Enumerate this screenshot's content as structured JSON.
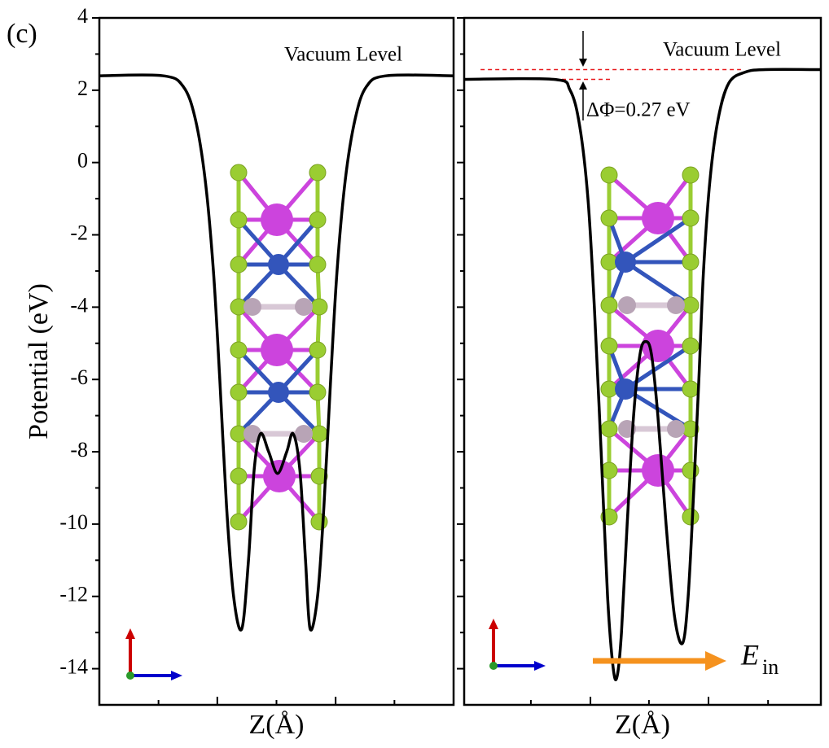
{
  "panel_label": "(c)",
  "chart_data": [
    {
      "type": "line",
      "ylabel": "Potential (eV)",
      "xlabel": "Z(Å)",
      "color": "#000000",
      "xlim": [
        0,
        100
      ],
      "xticks": [
        16.7,
        33.3,
        50,
        66.7,
        83.3
      ],
      "ylim": [
        -15,
        4
      ],
      "yticks": [
        4,
        2,
        0,
        -2,
        -4,
        -6,
        -8,
        -10,
        -12,
        -14
      ],
      "x": [
        0,
        17.9,
        23.7,
        27.1,
        29.9,
        32.2,
        34.0,
        35.9,
        37.9,
        40.2,
        42.1,
        43.7,
        45.5,
        47.8,
        50.3,
        52.9,
        54.7,
        56.6,
        58.2,
        59.5,
        61.6,
        63.4,
        65.3,
        67.1,
        69.4,
        72.2,
        75.4,
        81.1,
        100
      ],
      "values": [
        2.4,
        2.4,
        2.1,
        1.2,
        -0.5,
        -3,
        -6,
        -9.5,
        -12,
        -12.9,
        -11,
        -8.5,
        -7.5,
        -8,
        -8.6,
        -8,
        -7.5,
        -8.5,
        -11,
        -12.9,
        -12,
        -9.5,
        -6,
        -3,
        -0.5,
        1.2,
        2.1,
        2.4,
        2.4
      ],
      "annotations": [
        "Vacuum Level"
      ]
    },
    {
      "type": "line",
      "xlabel": "Z(Å)",
      "color": "#000000",
      "xlim": [
        0,
        100
      ],
      "xticks": [
        18.7,
        35.4,
        51.8,
        68.5,
        85.2
      ],
      "ylim": [
        -15,
        4
      ],
      "yticks": [
        4,
        2,
        0,
        -2,
        -4,
        -6,
        -8,
        -10,
        -12,
        -14
      ],
      "x": [
        0,
        25.1,
        29.7,
        32.4,
        34.7,
        36.5,
        38.4,
        40.2,
        41.8,
        42.9,
        44.1,
        45.7,
        47.5,
        49.3,
        50.9,
        52.5,
        54.3,
        56.6,
        58.9,
        61.2,
        62.8,
        64.4,
        65.8,
        67.1,
        68.9,
        71.2,
        74.2,
        78.8,
        84.5,
        100
      ],
      "values": [
        2.3,
        2.3,
        2.0,
        1.0,
        -1,
        -4,
        -8,
        -12,
        -14,
        -14.2,
        -13,
        -10,
        -7,
        -5.3,
        -4.95,
        -5.3,
        -7,
        -10,
        -12.5,
        -13.3,
        -12,
        -9,
        -6,
        -3,
        -0.5,
        1.2,
        2.2,
        2.5,
        2.57,
        2.57
      ],
      "reference_lines": [
        {
          "y": 2.57,
          "x": [
            4.6,
            77.6
          ],
          "color": "#e8191c"
        },
        {
          "y": 2.3,
          "x": [
            27.4,
            41.0
          ],
          "color": "#e8191c"
        }
      ],
      "annotations": [
        "Vacuum Level",
        "ΔΦ=0.27 eV",
        "E",
        "in"
      ]
    }
  ]
}
